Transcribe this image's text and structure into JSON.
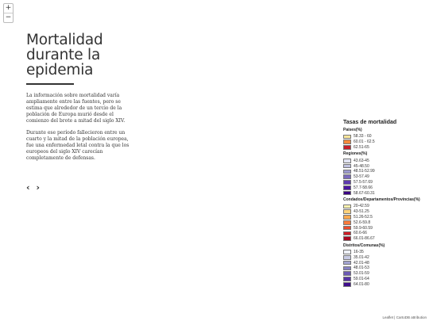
{
  "zoom": {
    "in_label": "+",
    "out_label": "−"
  },
  "story": {
    "title_lines": [
      "Mortalidad",
      "durante la",
      "epidemia"
    ],
    "paragraphs": [
      "La información sobre mortalidad varía ampliamente entre las fuentes, pero se estima que alrededor de un tercio de la población de Europa murió desde el comienzo del brote a mitad del siglo XIV.",
      "Durante ese período fallecieron entre un cuarto y la mitad de la población europea, fue una enfermedad letal contra la que los europeos del siglo XIV carecían completamente de defensas."
    ],
    "prev_label": "‹",
    "next_label": "›"
  },
  "legend": {
    "title": "Tasas de mortalidad",
    "groups": [
      {
        "heading": "Países(%)",
        "items": [
          {
            "label": "58.33 - 60",
            "color": "#fde79c"
          },
          {
            "label": "60.01 - 62.5",
            "color": "#f58a3c"
          },
          {
            "label": "62.51-65",
            "color": "#c81e2a"
          }
        ]
      },
      {
        "heading": "Regiones(%)",
        "items": [
          {
            "label": "43.63-45",
            "color": "#e2e4f3"
          },
          {
            "label": "45-48.50",
            "color": "#c2c4e2"
          },
          {
            "label": "48.51-52.99",
            "color": "#9c9ad0"
          },
          {
            "label": "53-57.49",
            "color": "#7c6cbe"
          },
          {
            "label": "57.5-57.69",
            "color": "#5e3bb0"
          },
          {
            "label": "57.7-58.66",
            "color": "#4a16a0"
          },
          {
            "label": "58.67-60.31",
            "color": "#3b0084"
          }
        ]
      },
      {
        "heading": "Condados/Departamentos/Provincias(%)",
        "items": [
          {
            "label": "20-42.59",
            "color": "#fdf3b0"
          },
          {
            "label": "43-51.25",
            "color": "#fdd27c"
          },
          {
            "label": "51.26-52.5",
            "color": "#fca94f"
          },
          {
            "label": "52.6-59.8",
            "color": "#f87b3c"
          },
          {
            "label": "59.9-60.59",
            "color": "#ed4a2b"
          },
          {
            "label": "60.6-66",
            "color": "#d01d25"
          },
          {
            "label": "66.01-86.67",
            "color": "#a8061f"
          }
        ]
      },
      {
        "heading": "Distritos/Comunas(%)",
        "items": [
          {
            "label": "16-35",
            "color": "#eef1f8"
          },
          {
            "label": "35.01-42",
            "color": "#c8cbe4"
          },
          {
            "label": "42.01-48",
            "color": "#a4a5d2"
          },
          {
            "label": "48.01-53",
            "color": "#8782c4"
          },
          {
            "label": "53.01-59",
            "color": "#6c5ab4"
          },
          {
            "label": "59.01-64",
            "color": "#5633a6"
          },
          {
            "label": "64.01-80",
            "color": "#3f0d8c"
          }
        ]
      }
    ]
  },
  "attribution": "Leaflet | CartoDB attribution"
}
